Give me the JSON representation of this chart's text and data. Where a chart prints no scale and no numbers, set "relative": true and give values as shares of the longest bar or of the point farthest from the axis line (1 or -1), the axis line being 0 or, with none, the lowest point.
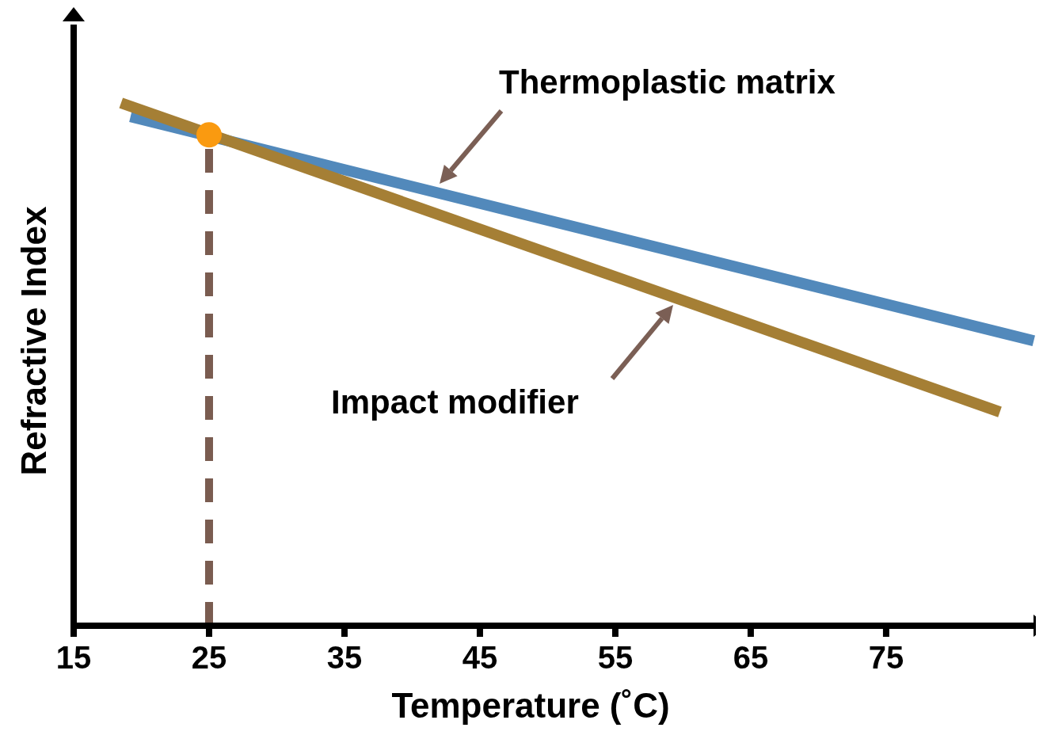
{
  "chart_data": {
    "type": "line",
    "relative": true,
    "xlabel": "Temperature (˚C)",
    "ylabel": "Refractive Index",
    "xlim": [
      15,
      86
    ],
    "xticks": [
      15,
      25,
      35,
      45,
      55,
      65,
      75
    ],
    "ylim": [
      0,
      1.15
    ],
    "marker": "none",
    "series": [
      {
        "type": "line",
        "color": "#5289bb",
        "x": [
          19.2,
          85.9
        ],
        "values": [
          0.974,
          0.545
        ]
      },
      {
        "type": "line",
        "color": "#a57f35",
        "x": [
          18.5,
          83.4
        ],
        "values": [
          1,
          0.409
        ]
      },
      {
        "type": "scatter",
        "color": "#fa9a10",
        "marker": "circle",
        "x": [
          25
        ],
        "values": [
          0.939
        ]
      }
    ],
    "ref_lines": [
      {
        "axis": "x",
        "value": 25,
        "color": "#7a5c50",
        "line_style": "dashed"
      }
    ],
    "annotations": [
      "Thermoplastic matrix",
      "Impact modifier"
    ]
  }
}
